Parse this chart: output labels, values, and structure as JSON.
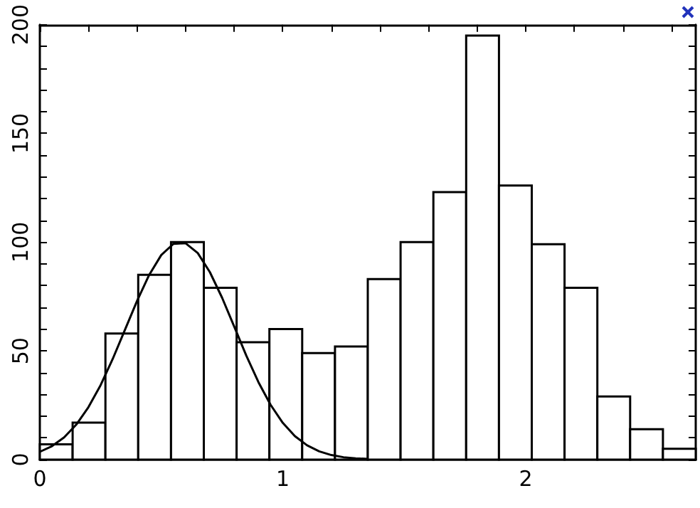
{
  "chart_data": {
    "type": "histogram",
    "bins": [
      0,
      0.135,
      0.27,
      0.405,
      0.54,
      0.675,
      0.81,
      0.945,
      1.08,
      1.215,
      1.35,
      1.485,
      1.62,
      1.755,
      1.89,
      2.025,
      2.16,
      2.295,
      2.43,
      2.565,
      2.7
    ],
    "series": [
      {
        "values": [
          7,
          17,
          58,
          85,
          100,
          79,
          54,
          60,
          49,
          52,
          83,
          100,
          123,
          195,
          126,
          99,
          79,
          29,
          14,
          5
        ]
      },
      {
        "type": "line",
        "x": [
          0,
          0.05,
          0.1,
          0.15,
          0.2,
          0.25,
          0.3,
          0.35,
          0.4,
          0.45,
          0.5,
          0.55,
          0.6,
          0.65,
          0.7,
          0.75,
          0.8,
          0.85,
          0.9,
          0.95,
          1.0,
          1.05,
          1.1,
          1.15,
          1.2,
          1.25,
          1.3,
          1.35
        ],
        "values": [
          3.6,
          6.2,
          10.2,
          16.1,
          24.1,
          34.2,
          46.3,
          59.6,
          72.9,
          84.9,
          94.1,
          99.2,
          99.5,
          95.0,
          86.2,
          74.5,
          61.2,
          47.8,
          35.6,
          25.2,
          16.9,
          10.8,
          6.6,
          3.8,
          2.1,
          1.1,
          0.6,
          0.3
        ]
      }
    ],
    "xlim": [
      0,
      2.7
    ],
    "xticks": [
      0,
      {
        "value": 0.2,
        "label": null
      },
      {
        "value": 0.4,
        "label": null
      },
      {
        "value": 0.6,
        "label": null
      },
      {
        "value": 0.8,
        "label": null
      },
      1,
      {
        "value": 1.2,
        "label": null
      },
      {
        "value": 1.4,
        "label": null
      },
      {
        "value": 1.6,
        "label": null
      },
      {
        "value": 1.8,
        "label": null
      },
      2,
      {
        "value": 2.2,
        "label": null
      },
      {
        "value": 2.4,
        "label": null
      },
      {
        "value": 2.6,
        "label": null
      }
    ],
    "ylim": [
      0,
      200
    ],
    "yticks": [
      0,
      {
        "value": 10,
        "label": null
      },
      {
        "value": 20,
        "label": null
      },
      {
        "value": 30,
        "label": null
      },
      {
        "value": 40,
        "label": null
      },
      50,
      {
        "value": 60,
        "label": null
      },
      {
        "value": 70,
        "label": null
      },
      {
        "value": 80,
        "label": null
      },
      {
        "value": 90,
        "label": null
      },
      100,
      {
        "value": 110,
        "label": null
      },
      {
        "value": 120,
        "label": null
      },
      {
        "value": 130,
        "label": null
      },
      {
        "value": 140,
        "label": null
      },
      150,
      {
        "value": 160,
        "label": null
      },
      {
        "value": 170,
        "label": null
      },
      {
        "value": 180,
        "label": null
      },
      {
        "value": 190,
        "label": null
      },
      200
    ],
    "grid": false,
    "marker": "none"
  }
}
